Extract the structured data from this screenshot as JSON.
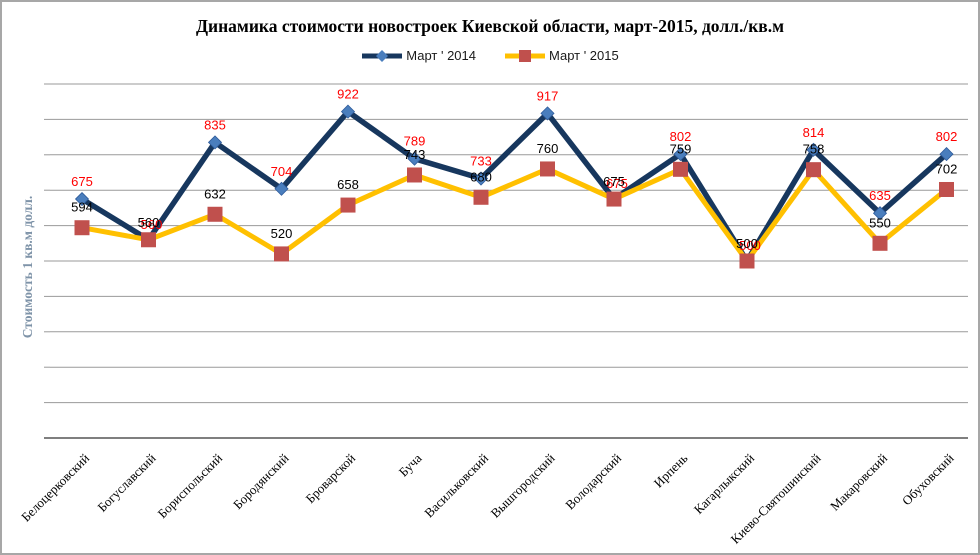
{
  "chart_data": {
    "type": "line",
    "title": "Динамика стоимости новостроек Киевской области, март-2015, долл./кв.м",
    "ylabel": "Стоимость 1 кв.м долл.",
    "xlabel": "",
    "categories": [
      "Белоцерковский",
      "Богуславский",
      "Бориспольский",
      "Бородянский",
      "Броварской",
      "Буча",
      "Васильковский",
      "Вышгородский",
      "Володарский",
      "Ирпень",
      "Кагарлыкский",
      "Киево-Святошинский",
      "Макаровский",
      "Обуховский"
    ],
    "series": [
      {
        "name": "Март ' 2014",
        "values": [
          675,
          560,
          835,
          704,
          922,
          789,
          733,
          917,
          675,
          802,
          500,
          814,
          635,
          802
        ],
        "line_color": "#17375E",
        "marker": "diamond",
        "marker_color": "#4A7EBD",
        "label_color": "#FF0000"
      },
      {
        "name": "Март ' 2015",
        "values": [
          594,
          560,
          632,
          520,
          658,
          743,
          680,
          760,
          675,
          759,
          500,
          758,
          550,
          702
        ],
        "line_color": "#FFC000",
        "marker": "square",
        "marker_color": "#C0504D",
        "label_color": "#000000"
      }
    ],
    "ylim": [
      0,
      1000
    ],
    "grid_step": 100,
    "grid": true,
    "legend_position": "top",
    "y_tick_labels_visible": false,
    "colors": {
      "gridline": "#9A9A9A",
      "axis": "#7F7F7F",
      "frame_border": "#A7A7A7",
      "y_title": "#7E93A8",
      "title": "#000000"
    }
  }
}
